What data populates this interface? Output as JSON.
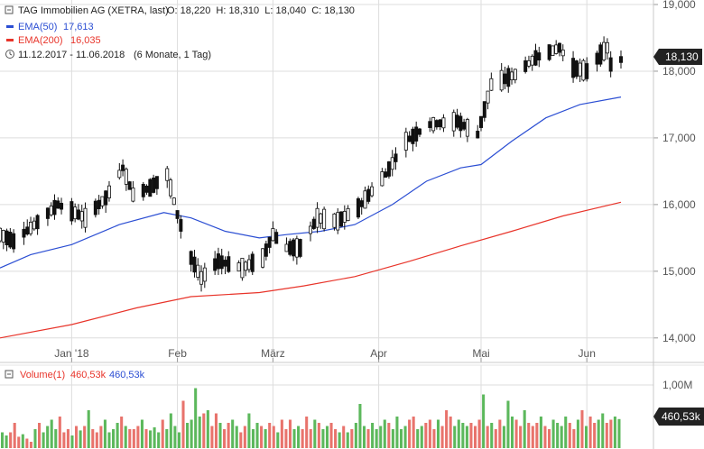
{
  "header": {
    "instrument": "TAG Immobilien AG (XETRA, last)",
    "ohlc": "O: 18,220  H: 18,310  L: 18,040  C: 18,130",
    "ema50_label": "EMA(50)",
    "ema50_value": "17,613",
    "ema200_label": "EMA(200)",
    "ema200_value": "16,035",
    "period": "11.12.2017 - 11.06.2018",
    "period_note": "(6 Monate, 1 Tag)"
  },
  "last_price_tag": "18,130",
  "volume_header": {
    "label": "Volume(1)",
    "value_red": "460,53k",
    "value_blue": "460,53k"
  },
  "volume_tag": "460,53k",
  "colors": {
    "up": "#5cb85c",
    "down": "#e8736c",
    "candle": "#111111",
    "ema50": "#2b4ed3",
    "ema200": "#e8342a",
    "grid": "#dddddd",
    "axis_text": "#555555",
    "tag_bg": "#222222"
  },
  "chart_data": {
    "type": "candlestick",
    "ylim": [
      13.7,
      19.0
    ],
    "y_ticks": [
      "14,000",
      "15,000",
      "16,000",
      "17,000",
      "18,000",
      "19,000"
    ],
    "y_tick_values": [
      14,
      15,
      16,
      17,
      18,
      19
    ],
    "x_labels": [
      {
        "label": "Jan '18",
        "date": "2018-01-01"
      },
      {
        "label": "Feb",
        "date": "2018-02-01"
      },
      {
        "label": "März",
        "date": "2018-03-01"
      },
      {
        "label": "Apr",
        "date": "2018-04-01"
      },
      {
        "label": "Mai",
        "date": "2018-05-01"
      },
      {
        "label": "Jun",
        "date": "2018-06-01"
      }
    ],
    "x_range": [
      "2017-12-11",
      "2018-06-11"
    ],
    "last": {
      "open": 18.22,
      "high": 18.31,
      "low": 18.04,
      "close": 18.13
    },
    "close_path": [
      [
        "2017-12-11",
        15.55
      ],
      [
        "2017-12-15",
        15.45
      ],
      [
        "2017-12-20",
        15.65
      ],
      [
        "2017-12-28",
        16.0
      ],
      [
        "2018-01-05",
        15.8
      ],
      [
        "2018-01-11",
        16.1
      ],
      [
        "2018-01-16",
        16.55
      ],
      [
        "2018-01-19",
        16.15
      ],
      [
        "2018-01-24",
        16.25
      ],
      [
        "2018-01-29",
        16.45
      ],
      [
        "2018-02-01",
        15.85
      ],
      [
        "2018-02-05",
        15.2
      ],
      [
        "2018-02-08",
        14.9
      ],
      [
        "2018-02-13",
        15.15
      ],
      [
        "2018-02-20",
        15.05
      ],
      [
        "2018-02-26",
        15.2
      ],
      [
        "2018-03-01",
        15.55
      ],
      [
        "2018-03-05",
        15.35
      ],
      [
        "2018-03-09",
        15.35
      ],
      [
        "2018-03-14",
        15.8
      ],
      [
        "2018-03-20",
        15.75
      ],
      [
        "2018-03-26",
        15.95
      ],
      [
        "2018-04-03",
        16.45
      ],
      [
        "2018-04-09",
        16.95
      ],
      [
        "2018-04-16",
        17.2
      ],
      [
        "2018-04-24",
        17.25
      ],
      [
        "2018-04-30",
        17.05
      ],
      [
        "2018-05-04",
        17.8
      ],
      [
        "2018-05-11",
        17.95
      ],
      [
        "2018-05-17",
        18.2
      ],
      [
        "2018-05-24",
        18.35
      ],
      [
        "2018-05-28",
        18.05
      ],
      [
        "2018-06-01",
        18.0
      ],
      [
        "2018-06-05",
        18.25
      ],
      [
        "2018-06-07",
        18.35
      ],
      [
        "2018-06-08",
        18.1
      ],
      [
        "2018-06-11",
        18.13
      ]
    ],
    "series": [
      {
        "name": "EMA(50)",
        "points": [
          [
            "2017-12-11",
            15.05
          ],
          [
            "2017-12-20",
            15.25
          ],
          [
            "2018-01-01",
            15.4
          ],
          [
            "2018-01-15",
            15.7
          ],
          [
            "2018-01-28",
            15.88
          ],
          [
            "2018-02-05",
            15.8
          ],
          [
            "2018-02-15",
            15.6
          ],
          [
            "2018-02-25",
            15.5
          ],
          [
            "2018-03-05",
            15.55
          ],
          [
            "2018-03-15",
            15.6
          ],
          [
            "2018-03-25",
            15.7
          ],
          [
            "2018-04-05",
            16.0
          ],
          [
            "2018-04-15",
            16.35
          ],
          [
            "2018-04-25",
            16.55
          ],
          [
            "2018-05-01",
            16.6
          ],
          [
            "2018-05-10",
            16.95
          ],
          [
            "2018-05-20",
            17.3
          ],
          [
            "2018-05-30",
            17.5
          ],
          [
            "2018-06-11",
            17.613
          ]
        ]
      },
      {
        "name": "EMA(200)",
        "points": [
          [
            "2017-12-11",
            14.0
          ],
          [
            "2018-01-01",
            14.2
          ],
          [
            "2018-01-20",
            14.45
          ],
          [
            "2018-02-05",
            14.62
          ],
          [
            "2018-02-25",
            14.68
          ],
          [
            "2018-03-10",
            14.78
          ],
          [
            "2018-03-25",
            14.92
          ],
          [
            "2018-04-10",
            15.15
          ],
          [
            "2018-04-25",
            15.38
          ],
          [
            "2018-05-10",
            15.6
          ],
          [
            "2018-05-25",
            15.83
          ],
          [
            "2018-06-11",
            16.035
          ]
        ]
      }
    ],
    "volume": {
      "ylim": [
        0,
        1.1
      ],
      "unit": "M",
      "y_tick_label": "1,00M",
      "y_tick_value": 1.0,
      "last_value": 0.46053,
      "bars": [
        0.25,
        0.2,
        0.25,
        0.4,
        0.18,
        0.22,
        0.15,
        0.1,
        0.3,
        0.4,
        0.25,
        0.35,
        0.45,
        0.3,
        0.5,
        0.25,
        0.3,
        0.2,
        0.35,
        0.28,
        0.35,
        0.6,
        0.3,
        0.25,
        0.35,
        0.45,
        0.25,
        0.3,
        0.4,
        0.5,
        0.35,
        0.3,
        0.3,
        0.35,
        0.45,
        0.3,
        0.28,
        0.33,
        0.25,
        0.45,
        0.3,
        0.55,
        0.35,
        0.25,
        0.75,
        0.4,
        0.45,
        0.95,
        0.5,
        0.55,
        0.6,
        0.35,
        0.55,
        0.4,
        0.3,
        0.4,
        0.45,
        0.35,
        0.25,
        0.35,
        0.55,
        0.3,
        0.4,
        0.35,
        0.3,
        0.4,
        0.35,
        0.25,
        0.45,
        0.3,
        0.45,
        0.3,
        0.35,
        0.3,
        0.5,
        0.3,
        0.45,
        0.4,
        0.3,
        0.35,
        0.4,
        0.3,
        0.25,
        0.35,
        0.25,
        0.3,
        0.4,
        0.7,
        0.35,
        0.3,
        0.4,
        0.3,
        0.35,
        0.45,
        0.4,
        0.3,
        0.5,
        0.3,
        0.35,
        0.45,
        0.5,
        0.3,
        0.35,
        0.4,
        0.45,
        0.3,
        0.45,
        0.35,
        0.6,
        0.5,
        0.35,
        0.45,
        0.4,
        0.35,
        0.4,
        0.35,
        0.45,
        0.85,
        0.35,
        0.4,
        0.3,
        0.45,
        0.35,
        0.75,
        0.5,
        0.45,
        0.35,
        0.6,
        0.4,
        0.35,
        0.4,
        0.5,
        0.35,
        0.3,
        0.45,
        0.4,
        0.35,
        0.5,
        0.4,
        0.3,
        0.45,
        0.6,
        0.35,
        0.5,
        0.4,
        0.45,
        0.55,
        0.4,
        0.45,
        0.5,
        0.46
      ],
      "bar_colors": "alternating-up-down"
    }
  }
}
